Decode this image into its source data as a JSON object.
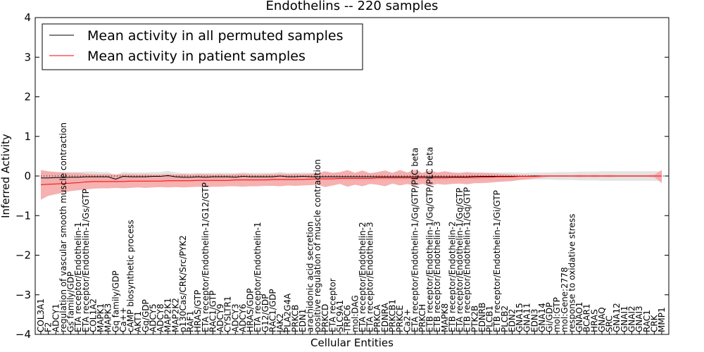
{
  "chart_data": {
    "type": "line",
    "title": "Endothelins -- 220 samples",
    "xlabel": "Cellular Entities",
    "ylabel": "Inferred Activity",
    "ylim": [
      -4,
      4
    ],
    "yticks": [
      "−4",
      "−3",
      "−2",
      "−1",
      "0",
      "1",
      "2",
      "3",
      "4"
    ],
    "grid": false,
    "legend_position": "top-left",
    "colors": {
      "permuted_line": "#000000",
      "patient_line": "#ff0000",
      "permuted_band": "#d9d9d9",
      "patient_band": "#f4a3a3"
    },
    "categories": [
      "COL3A1",
      "F2",
      "ADCY1",
      "regulation of vascular smooth muscle contraction",
      "Gs family/GDP",
      "ETA receptor/Endothelin-1",
      "ETA receptor/Endothelin-1/Gs/GTP",
      "COL1A2",
      "MAPK1",
      "MAPK3",
      "Gq family/GDP",
      "Ca++",
      "cAMP biosynthetic process",
      "AKT1",
      "Gq/GDP",
      "ADCY5",
      "ADCY8",
      "MAP2K1",
      "MAP2K2",
      "p130Cas/CRK/Src/PYK2",
      "RAF1",
      "HRAS/GTP",
      "ETA receptor/Endothelin-1/G12/GTP",
      "RAC1/GTP",
      "ADCY9",
      "CYSLTR1",
      "ADCY3",
      "ADCY6",
      "HRAS/GDP",
      "ETA receptor/Endothelin-1",
      "G12/GDP",
      "RAC1/GDP",
      "JAK2",
      "PLA2G4A",
      "PRKCB",
      "EDN1",
      "arachidonic acid secretion",
      "positive regulation of muscle contraction",
      "PRKCD",
      "ETA receptor",
      "SLC9A1",
      "TRPC6",
      "mol:DAG",
      "ETA receptor/Endothelin-2",
      "ETA receptor/Endothelin-3",
      "PRKCA",
      "EDNRA",
      "PRKCB1",
      "PRKCE",
      "Ca2+",
      "ETA receptor/Endothelin-1/Gq/GTP/PLC beta",
      "PRKCH",
      "ETB receptor/Endothelin-1/Gq/GTP/PLC beta",
      "ETB receptor/Endothelin-3",
      "MAPK8",
      "ETB receptor/Endothelin-2",
      "ETA receptor/Endothelin-1/Gq/GTP",
      "ETB receptor/Endothelin-1/Gq/GTP",
      "PTK2B",
      "EDNRB",
      "PLCB1",
      "ETB receptor/Endothelin-1/Gi/GTP",
      "PLCB2",
      "EDN2",
      "GNA15",
      "GNA11",
      "EDN3",
      "GNA14",
      "Gi/GDP",
      "mol:GTP",
      "mol:Gene:2778",
      "response to oxidative stress",
      "GNAO1",
      "BCAR1",
      "HRAS",
      "GNAQ",
      "SRC",
      "GNA12",
      "GNAI1",
      "GNAI2",
      "GNAI3",
      "RAC1",
      "CRK",
      "MMP1"
    ],
    "series": [
      {
        "name": "Mean activity in all permuted samples",
        "values": [
          -0.05,
          -0.05,
          -0.04,
          -0.04,
          -0.03,
          -0.03,
          -0.02,
          -0.02,
          -0.02,
          -0.02,
          -0.08,
          -0.01,
          -0.02,
          -0.02,
          -0.02,
          -0.01,
          -0.01,
          0.01,
          -0.02,
          -0.03,
          -0.03,
          -0.02,
          -0.03,
          -0.02,
          -0.02,
          -0.02,
          -0.03,
          -0.01,
          -0.02,
          -0.02,
          -0.02,
          -0.02,
          0.0,
          -0.02,
          -0.02,
          -0.01,
          -0.02,
          -0.02,
          -0.02,
          -0.02,
          -0.02,
          -0.02,
          -0.02,
          -0.02,
          -0.02,
          -0.02,
          -0.02,
          -0.02,
          -0.02,
          -0.02,
          -0.02,
          -0.02,
          -0.02,
          -0.02,
          -0.02,
          -0.02,
          -0.02,
          -0.02,
          -0.01,
          -0.01,
          -0.01,
          -0.01,
          -0.01,
          -0.01,
          -0.01,
          -0.01,
          0.0,
          0.0,
          0.0,
          0.0,
          0.0,
          0.0,
          0.0,
          0.0,
          0.0,
          0.0,
          0.0,
          0.0,
          0.0,
          0.0,
          0.0,
          0.0,
          0.0,
          0.0
        ],
        "lower": [
          -0.2,
          -0.2,
          -0.18,
          -0.18,
          -0.16,
          -0.16,
          -0.15,
          -0.15,
          -0.14,
          -0.14,
          -0.18,
          -0.12,
          -0.13,
          -0.13,
          -0.13,
          -0.12,
          -0.12,
          -0.11,
          -0.13,
          -0.13,
          -0.13,
          -0.12,
          -0.13,
          -0.12,
          -0.12,
          -0.12,
          -0.13,
          -0.11,
          -0.12,
          -0.12,
          -0.12,
          -0.12,
          -0.1,
          -0.12,
          -0.12,
          -0.11,
          -0.12,
          -0.12,
          -0.12,
          -0.12,
          -0.12,
          -0.12,
          -0.12,
          -0.12,
          -0.12,
          -0.12,
          -0.12,
          -0.12,
          -0.12,
          -0.12,
          -0.12,
          -0.12,
          -0.12,
          -0.12,
          -0.12,
          -0.12,
          -0.12,
          -0.12,
          -0.11,
          -0.11,
          -0.11,
          -0.11,
          -0.11,
          -0.11,
          -0.1,
          -0.1,
          -0.09,
          -0.09,
          -0.09,
          -0.1,
          -0.1,
          -0.1,
          -0.11,
          -0.11,
          -0.11,
          -0.12,
          -0.12,
          -0.12,
          -0.12,
          -0.12,
          -0.12,
          -0.12,
          -0.12,
          -0.12
        ],
        "upper": [
          0.1,
          0.1,
          0.1,
          0.1,
          0.1,
          0.1,
          0.11,
          0.11,
          0.1,
          0.1,
          0.02,
          0.1,
          0.09,
          0.09,
          0.09,
          0.1,
          0.1,
          0.13,
          0.09,
          0.07,
          0.07,
          0.08,
          0.07,
          0.08,
          0.08,
          0.08,
          0.07,
          0.09,
          0.08,
          0.08,
          0.08,
          0.08,
          0.1,
          0.08,
          0.08,
          0.09,
          0.08,
          0.08,
          0.08,
          0.08,
          0.08,
          0.08,
          0.08,
          0.08,
          0.08,
          0.08,
          0.08,
          0.08,
          0.08,
          0.08,
          0.08,
          0.08,
          0.08,
          0.08,
          0.08,
          0.08,
          0.08,
          0.08,
          0.09,
          0.09,
          0.09,
          0.09,
          0.09,
          0.09,
          0.08,
          0.08,
          0.09,
          0.09,
          0.09,
          0.1,
          0.1,
          0.1,
          0.11,
          0.11,
          0.11,
          0.12,
          0.12,
          0.12,
          0.12,
          0.12,
          0.12,
          0.12,
          0.12,
          0.12
        ]
      },
      {
        "name": "Mean activity in patient samples",
        "values": [
          -0.22,
          -0.21,
          -0.2,
          -0.19,
          -0.18,
          -0.17,
          -0.15,
          -0.14,
          -0.14,
          -0.14,
          -0.14,
          -0.14,
          -0.13,
          -0.13,
          -0.13,
          -0.13,
          -0.13,
          -0.12,
          -0.12,
          -0.12,
          -0.12,
          -0.11,
          -0.11,
          -0.11,
          -0.11,
          -0.11,
          -0.1,
          -0.1,
          -0.1,
          -0.1,
          -0.1,
          -0.09,
          -0.09,
          -0.09,
          -0.09,
          -0.09,
          -0.08,
          -0.07,
          -0.07,
          -0.07,
          -0.06,
          -0.06,
          -0.06,
          -0.06,
          -0.06,
          -0.05,
          -0.05,
          -0.05,
          -0.05,
          -0.05,
          -0.05,
          -0.05,
          -0.05,
          -0.05,
          -0.05,
          -0.04,
          -0.04,
          -0.04,
          -0.04,
          -0.03,
          -0.03,
          -0.02,
          -0.02,
          -0.02,
          -0.01,
          -0.01,
          -0.01,
          0.0,
          0.0,
          0.0,
          0.0,
          0.0,
          0.0,
          0.0,
          0.0,
          0.0,
          0.0,
          0.0,
          0.0,
          0.0,
          0.0,
          0.0,
          0.0,
          0.0
        ],
        "lower": [
          -0.6,
          -0.5,
          -0.46,
          -0.42,
          -0.38,
          -0.36,
          -0.34,
          -0.32,
          -0.31,
          -0.31,
          -0.3,
          -0.31,
          -0.3,
          -0.29,
          -0.3,
          -0.29,
          -0.28,
          -0.29,
          -0.28,
          -0.29,
          -0.28,
          -0.27,
          -0.28,
          -0.27,
          -0.27,
          -0.26,
          -0.26,
          -0.27,
          -0.26,
          -0.26,
          -0.25,
          -0.25,
          -0.26,
          -0.24,
          -0.25,
          -0.24,
          -0.23,
          -0.22,
          -0.28,
          -0.24,
          -0.2,
          -0.27,
          -0.22,
          -0.26,
          -0.2,
          -0.22,
          -0.26,
          -0.19,
          -0.24,
          -0.2,
          -0.25,
          -0.2,
          -0.24,
          -0.2,
          -0.22,
          -0.2,
          -0.19,
          -0.21,
          -0.18,
          -0.18,
          -0.17,
          -0.15,
          -0.14,
          -0.13,
          -0.1,
          -0.08,
          -0.06,
          -0.04,
          -0.02,
          -0.02,
          -0.02,
          -0.02,
          -0.03,
          -0.02,
          -0.03,
          -0.02,
          -0.03,
          -0.02,
          -0.02,
          -0.02,
          -0.02,
          -0.02,
          -0.03,
          -0.18
        ],
        "upper": [
          0.15,
          0.12,
          0.1,
          0.09,
          0.08,
          0.08,
          0.06,
          0.05,
          0.05,
          0.05,
          0.04,
          0.05,
          0.05,
          0.04,
          0.05,
          0.04,
          0.04,
          0.05,
          0.04,
          0.05,
          0.04,
          0.05,
          0.05,
          0.04,
          0.05,
          0.04,
          0.05,
          0.06,
          0.05,
          0.04,
          0.05,
          0.05,
          0.06,
          0.05,
          0.06,
          0.05,
          0.06,
          0.07,
          0.12,
          0.08,
          0.1,
          0.15,
          0.08,
          0.14,
          0.07,
          0.1,
          0.14,
          0.08,
          0.15,
          0.09,
          0.16,
          0.08,
          0.14,
          0.09,
          0.12,
          0.09,
          0.08,
          0.1,
          0.08,
          0.08,
          0.07,
          0.06,
          0.05,
          0.04,
          0.03,
          0.03,
          0.02,
          0.02,
          0.02,
          0.02,
          0.02,
          0.02,
          0.03,
          0.02,
          0.03,
          0.02,
          0.03,
          0.02,
          0.02,
          0.02,
          0.02,
          0.02,
          0.03,
          0.15
        ]
      }
    ]
  }
}
